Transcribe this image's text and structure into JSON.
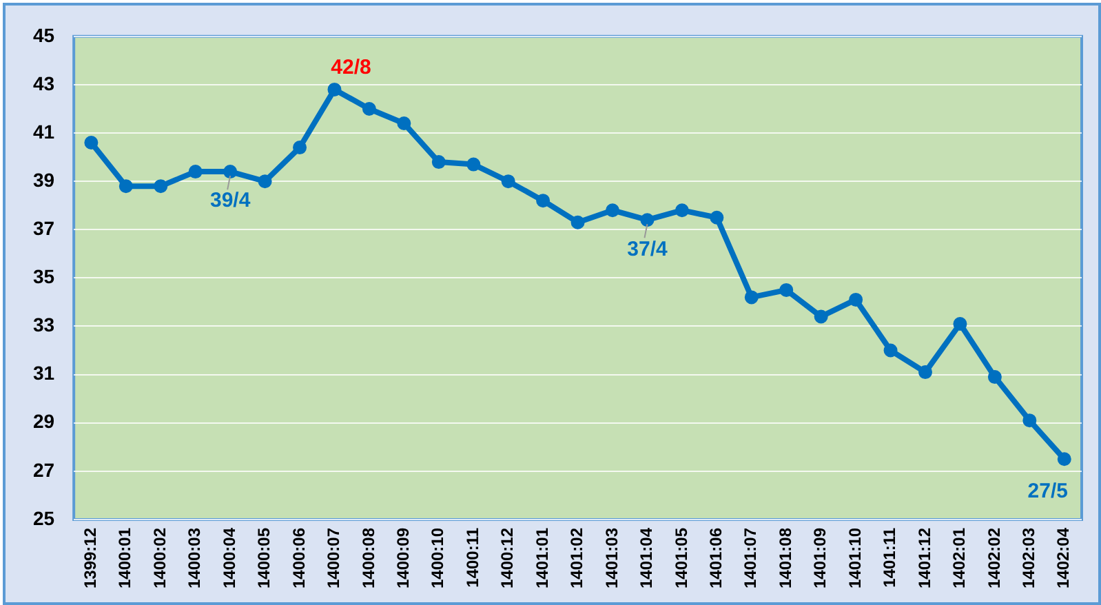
{
  "chart_data": {
    "type": "line",
    "categories": [
      "1399:12",
      "1400:01",
      "1400:02",
      "1400:03",
      "1400:04",
      "1400:05",
      "1400:06",
      "1400:07",
      "1400:08",
      "1400:09",
      "1400:10",
      "1400:11",
      "1400:12",
      "1401:01",
      "1401:02",
      "1401:03",
      "1401:04",
      "1401:05",
      "1401:06",
      "1401:07",
      "1401:08",
      "1401:09",
      "1401:10",
      "1401:11",
      "1401:12",
      "1402:01",
      "1402:02",
      "1402:03",
      "1402:04"
    ],
    "series": [
      {
        "color": "#0070c0",
        "values": [
          40.6,
          38.8,
          38.8,
          39.4,
          39.4,
          39.0,
          40.4,
          42.8,
          42.0,
          41.4,
          39.8,
          39.7,
          39.0,
          38.2,
          37.3,
          37.8,
          37.4,
          37.8,
          37.5,
          34.2,
          34.5,
          33.4,
          34.1,
          32.0,
          31.1,
          33.1,
          30.9,
          29.1,
          27.5
        ]
      }
    ],
    "ylim": [
      25,
      45
    ],
    "yticks": [
      25,
      27,
      29,
      31,
      33,
      35,
      37,
      39,
      41,
      43,
      45
    ],
    "grid": "y",
    "marker": "circle",
    "line_style": "solid",
    "legend": false,
    "annotations": [
      {
        "text": "39/4",
        "x": "1400:04",
        "y": 39.4
      },
      {
        "text": "42/8",
        "x": "1400:07",
        "y": 42.8
      },
      {
        "text": "37/4",
        "x": "1401:04",
        "y": 37.4
      },
      {
        "text": "27/5",
        "x": "1402:04",
        "y": 27.5
      }
    ]
  }
}
